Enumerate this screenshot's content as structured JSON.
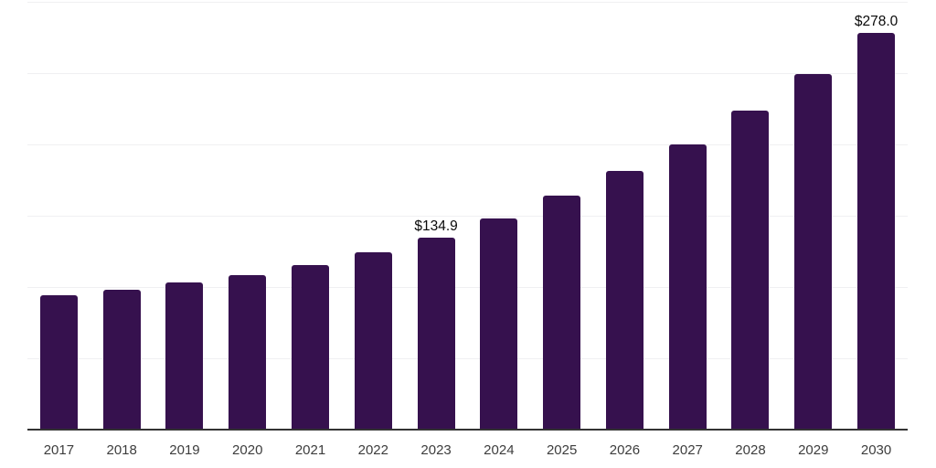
{
  "chart_data": {
    "type": "bar",
    "categories": [
      "2017",
      "2018",
      "2019",
      "2020",
      "2021",
      "2022",
      "2023",
      "2024",
      "2025",
      "2026",
      "2027",
      "2028",
      "2029",
      "2030"
    ],
    "values": [
      94.2,
      98.1,
      103.2,
      108.3,
      115.4,
      124.4,
      134.9,
      148.0,
      164.0,
      181.4,
      200.0,
      223.7,
      249.4,
      278.0
    ],
    "data_labels": [
      "",
      "",
      "",
      "",
      "",
      "",
      "$134.9",
      "",
      "",
      "",
      "",
      "",
      "",
      "$278.0"
    ],
    "title": "",
    "xlabel": "",
    "ylabel": "",
    "ylim": [
      0,
      300
    ],
    "gridline_step": 50,
    "grid": true,
    "legend_position": "none",
    "y_axis_tick_labels_visible": false,
    "bar_color": "#36114e",
    "gridline_color": "#f0f0f2",
    "axis_line_color": "#333333",
    "tick_label_color": "#3d3d3d",
    "data_label_color": "#0a0a0a",
    "background_color": "#ffffff"
  }
}
